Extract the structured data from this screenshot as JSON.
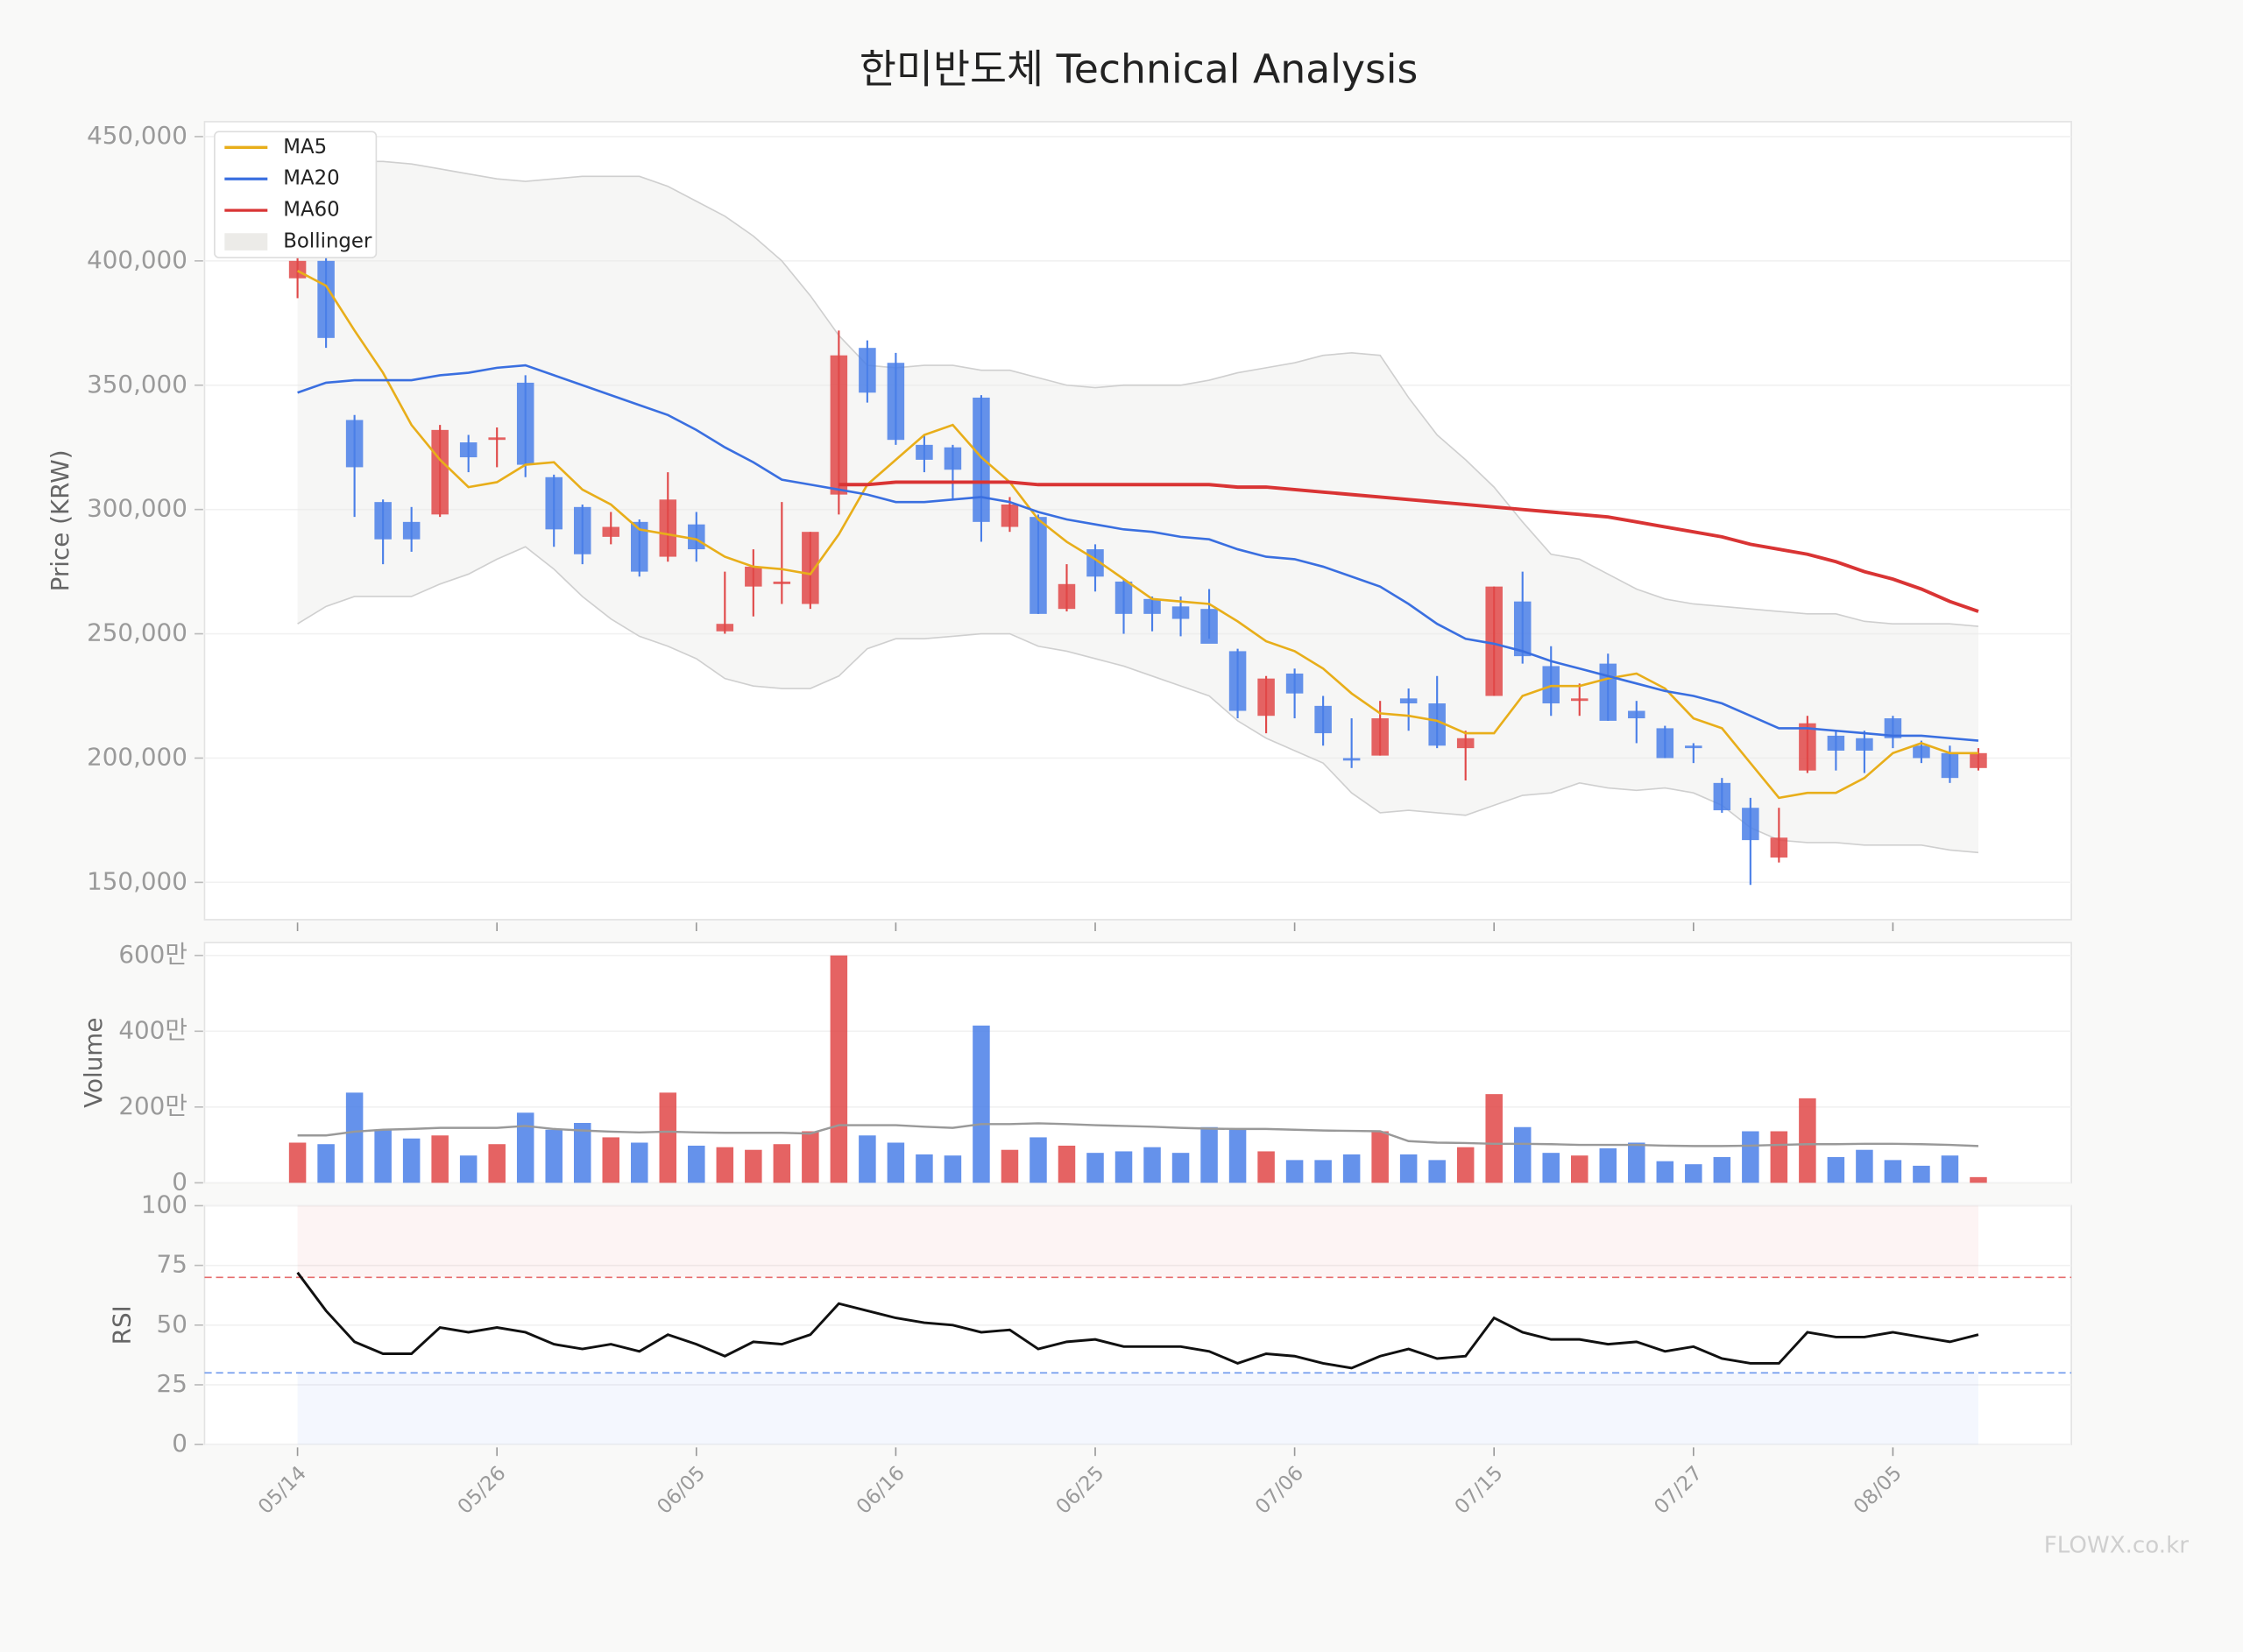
{
  "title": "한미반도체 Technical Analysis",
  "watermark": "FLOWX.co.kr",
  "chart_data": [
    {
      "type": "candlestick",
      "ylabel": "Price (KRW)",
      "categories": [
        "05/14",
        null,
        null,
        null,
        null,
        null,
        null,
        "05/26",
        null,
        null,
        null,
        null,
        null,
        null,
        "06/05",
        null,
        null,
        null,
        null,
        null,
        null,
        "06/16",
        null,
        null,
        null,
        null,
        null,
        null,
        "06/25",
        null,
        null,
        null,
        null,
        null,
        null,
        "07/06",
        null,
        null,
        null,
        null,
        null,
        null,
        "07/15",
        null,
        null,
        null,
        null,
        null,
        null,
        "07/27",
        null,
        null,
        null,
        null,
        null,
        null,
        "08/05",
        null,
        null,
        null
      ],
      "open": [
        393000,
        400000,
        336000,
        303000,
        295000,
        298000,
        327000,
        328000,
        351000,
        313000,
        301000,
        289000,
        295000,
        281000,
        294000,
        251000,
        269000,
        270000,
        262000,
        306000,
        365000,
        359000,
        326000,
        325000,
        345000,
        293000,
        297000,
        260000,
        284000,
        271000,
        264000,
        261000,
        260000,
        243000,
        217000,
        234000,
        221000,
        200000,
        201000,
        224000,
        222000,
        204000,
        225000,
        263000,
        237000,
        223000,
        238000,
        219000,
        212000,
        205000,
        190000,
        180000,
        160000,
        195000,
        209000,
        208000,
        216000,
        205000,
        202000,
        196000
      ],
      "high": [
        405000,
        405000,
        338000,
        304000,
        301000,
        334000,
        330000,
        333000,
        354000,
        314000,
        302000,
        299000,
        296000,
        315000,
        299000,
        275000,
        284000,
        303000,
        291000,
        372000,
        368000,
        363000,
        330000,
        326000,
        346000,
        305000,
        298000,
        278000,
        286000,
        272000,
        265000,
        265000,
        268000,
        244000,
        233000,
        236000,
        225000,
        216000,
        223000,
        228000,
        233000,
        211000,
        269000,
        275000,
        245000,
        230000,
        242000,
        223000,
        213000,
        206000,
        192000,
        184000,
        180000,
        217000,
        211000,
        211000,
        217000,
        207000,
        205000,
        204000
      ],
      "low": [
        385000,
        365000,
        297000,
        278000,
        283000,
        297000,
        315000,
        317000,
        313000,
        285000,
        278000,
        286000,
        273000,
        279000,
        279000,
        250000,
        257000,
        262000,
        260000,
        298000,
        343000,
        326000,
        315000,
        304000,
        287000,
        291000,
        258000,
        259000,
        267000,
        250000,
        251000,
        249000,
        248000,
        216000,
        210000,
        216000,
        205000,
        196000,
        201000,
        211000,
        204000,
        191000,
        225000,
        238000,
        217000,
        217000,
        215000,
        206000,
        200000,
        198000,
        178000,
        149000,
        158000,
        194000,
        195000,
        194000,
        204000,
        198000,
        190000,
        195000
      ],
      "close": [
        400000,
        369000,
        317000,
        288000,
        288000,
        332000,
        321000,
        329000,
        318000,
        292000,
        282000,
        293000,
        275000,
        304000,
        284000,
        254000,
        277000,
        271000,
        291000,
        362000,
        347000,
        328000,
        320000,
        316000,
        295000,
        302000,
        258000,
        270000,
        273000,
        258000,
        258000,
        256000,
        246000,
        219000,
        232000,
        226000,
        210000,
        199000,
        216000,
        222000,
        205000,
        208000,
        269000,
        241000,
        222000,
        224000,
        215000,
        216000,
        200000,
        204000,
        179000,
        167000,
        168000,
        214000,
        203000,
        203000,
        208000,
        200000,
        192000,
        202000
      ],
      "up_color": "#e04848",
      "down_color": "#4a7fe8",
      "series": [
        {
          "name": "MA5",
          "color": "#e8ae1a",
          "values": [
            396000,
            390000,
            372000,
            355000,
            334000,
            320000,
            309000,
            311000,
            318000,
            319000,
            308000,
            302000,
            292000,
            290000,
            288000,
            281000,
            277000,
            276000,
            274000,
            290000,
            310000,
            320000,
            330000,
            334000,
            321000,
            311000,
            296000,
            287000,
            280000,
            272000,
            264000,
            263000,
            262000,
            255000,
            247000,
            243000,
            236000,
            226000,
            218000,
            217000,
            215000,
            210000,
            210000,
            225000,
            229000,
            229000,
            232000,
            234000,
            228000,
            216000,
            212000,
            198000,
            184000,
            186000,
            186000,
            192000,
            202000,
            206000,
            202000,
            202000
          ]
        },
        {
          "name": "MA20",
          "color": "#3a6fe0",
          "values": [
            347000,
            351000,
            352000,
            352000,
            352000,
            354000,
            355000,
            357000,
            358000,
            354000,
            350000,
            346000,
            342000,
            338000,
            332000,
            325000,
            319000,
            312000,
            310000,
            308000,
            306000,
            303000,
            303000,
            304000,
            305000,
            303000,
            299000,
            296000,
            294000,
            292000,
            291000,
            289000,
            288000,
            284000,
            281000,
            280000,
            277000,
            273000,
            269000,
            262000,
            254000,
            248000,
            246000,
            243000,
            239000,
            236000,
            233000,
            230000,
            227000,
            225000,
            222000,
            217000,
            212000,
            212000,
            211000,
            210000,
            209000,
            209000,
            208000,
            207000
          ]
        },
        {
          "name": "MA60",
          "color": "#d93434",
          "values": [
            null,
            null,
            null,
            null,
            null,
            null,
            null,
            null,
            null,
            null,
            null,
            null,
            null,
            null,
            null,
            null,
            null,
            null,
            null,
            310000,
            310000,
            311000,
            311000,
            311000,
            311000,
            311000,
            310000,
            310000,
            310000,
            310000,
            310000,
            310000,
            310000,
            309000,
            309000,
            308000,
            307000,
            306000,
            305000,
            304000,
            303000,
            302000,
            301000,
            300000,
            299000,
            298000,
            297000,
            295000,
            293000,
            291000,
            289000,
            286000,
            284000,
            282000,
            279000,
            275000,
            272000,
            268000,
            263000,
            259000
          ]
        }
      ],
      "bollinger": {
        "name": "Bollinger",
        "color": "#ecebe8",
        "upper": [
          440000,
          440000,
          440000,
          440000,
          439000,
          437000,
          435000,
          433000,
          432000,
          433000,
          434000,
          434000,
          434000,
          430000,
          424000,
          418000,
          410000,
          400000,
          386000,
          370000,
          358000,
          357000,
          358000,
          358000,
          356000,
          356000,
          353000,
          350000,
          349000,
          350000,
          350000,
          350000,
          352000,
          355000,
          357000,
          359000,
          362000,
          363000,
          362000,
          345000,
          330000,
          320000,
          309000,
          295000,
          282000,
          280000,
          274000,
          268000,
          264000,
          262000,
          261000,
          260000,
          259000,
          258000,
          258000,
          255000,
          254000,
          254000,
          254000,
          253000
        ],
        "lower": [
          254000,
          261000,
          265000,
          265000,
          265000,
          270000,
          274000,
          280000,
          285000,
          276000,
          265000,
          256000,
          249000,
          245000,
          240000,
          232000,
          229000,
          228000,
          228000,
          233000,
          244000,
          248000,
          248000,
          249000,
          250000,
          250000,
          245000,
          243000,
          240000,
          237000,
          233000,
          229000,
          225000,
          215000,
          208000,
          203000,
          198000,
          186000,
          178000,
          179000,
          178000,
          177000,
          181000,
          185000,
          186000,
          190000,
          188000,
          187000,
          188000,
          186000,
          181000,
          172000,
          167000,
          166000,
          166000,
          165000,
          165000,
          165000,
          163000,
          162000
        ]
      },
      "ylim": [
        135000,
        456000
      ],
      "yticks": [
        {
          "value": 150000,
          "label": "150,000"
        },
        {
          "value": 200000,
          "label": "200,000"
        },
        {
          "value": 250000,
          "label": "250,000"
        },
        {
          "value": 300000,
          "label": "300,000"
        },
        {
          "value": 350000,
          "label": "350,000"
        },
        {
          "value": 400000,
          "label": "400,000"
        },
        {
          "value": 450000,
          "label": "450,000"
        }
      ],
      "grid": true,
      "legend": "upper left"
    },
    {
      "type": "bar",
      "ylabel": "Volume",
      "values": [
        1060000,
        1020000,
        2380000,
        1400000,
        1170000,
        1250000,
        720000,
        1020000,
        1850000,
        1400000,
        1580000,
        1200000,
        1060000,
        2380000,
        980000,
        940000,
        870000,
        1020000,
        1360000,
        6000000,
        1250000,
        1060000,
        750000,
        720000,
        4150000,
        870000,
        1200000,
        980000,
        790000,
        830000,
        940000,
        790000,
        1470000,
        1430000,
        830000,
        600000,
        600000,
        750000,
        1360000,
        750000,
        600000,
        940000,
        2340000,
        1470000,
        790000,
        720000,
        910000,
        1060000,
        570000,
        490000,
        680000,
        1360000,
        1360000,
        2230000,
        680000,
        870000,
        600000,
        450000,
        720000,
        150000
      ],
      "average": {
        "color": "#999999",
        "values": [
          1250000,
          1250000,
          1350000,
          1400000,
          1420000,
          1450000,
          1450000,
          1450000,
          1500000,
          1420000,
          1380000,
          1350000,
          1330000,
          1350000,
          1330000,
          1320000,
          1320000,
          1320000,
          1300000,
          1520000,
          1520000,
          1520000,
          1480000,
          1450000,
          1550000,
          1550000,
          1570000,
          1550000,
          1520000,
          1500000,
          1480000,
          1450000,
          1430000,
          1420000,
          1420000,
          1400000,
          1380000,
          1370000,
          1360000,
          1100000,
          1060000,
          1050000,
          1030000,
          1030000,
          1020000,
          1000000,
          1000000,
          1000000,
          980000,
          970000,
          970000,
          980000,
          1000000,
          1020000,
          1020000,
          1030000,
          1030000,
          1020000,
          1000000,
          970000
        ]
      },
      "ylim": [
        0,
        6340000
      ],
      "yticks": [
        0,
        {
          "value": 2000000,
          "label": "200만"
        },
        {
          "value": 4000000,
          "label": "400만"
        },
        {
          "value": 6000000,
          "label": "600만"
        }
      ],
      "grid": true
    },
    {
      "type": "line",
      "ylabel": "RSI",
      "values": [
        72,
        56,
        43,
        38,
        38,
        49,
        47,
        49,
        47,
        42,
        40,
        42,
        39,
        46,
        42,
        37,
        43,
        42,
        46,
        59,
        56,
        53,
        51,
        50,
        47,
        48,
        40,
        43,
        44,
        41,
        41,
        41,
        39,
        34,
        38,
        37,
        34,
        32,
        37,
        40,
        36,
        37,
        53,
        47,
        44,
        44,
        42,
        43,
        39,
        41,
        36,
        34,
        34,
        47,
        45,
        45,
        47,
        45,
        43,
        46
      ],
      "color": "#111111",
      "overbought": 70,
      "overbought_color": "#e04848",
      "oversold": 30,
      "oversold_color": "#4a7fe8",
      "ylim": [
        0,
        100
      ],
      "yticks": [
        0,
        25,
        50,
        75,
        100
      ],
      "grid": true
    }
  ]
}
